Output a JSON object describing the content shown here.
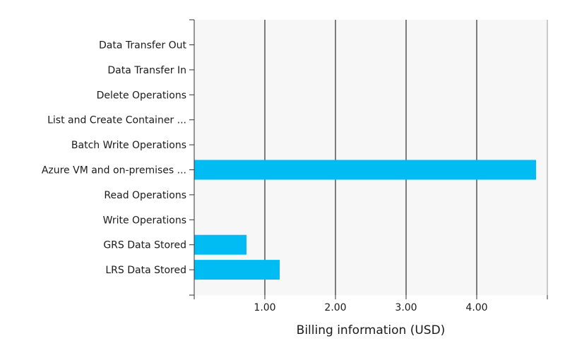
{
  "chart_data": {
    "type": "bar",
    "orientation": "horizontal",
    "categories": [
      "Data Transfer Out",
      "Data Transfer In",
      "Delete Operations",
      "List and Create Container ...",
      "Batch Write Operations",
      "Azure VM and on-premises  ...",
      "Read Operations",
      "Write Operations",
      "GRS Data Stored",
      "LRS Data Stored"
    ],
    "values": [
      0,
      0,
      0,
      0,
      0,
      4.84,
      0,
      0,
      0.74,
      1.21
    ],
    "xlabel": "Billing information (USD)",
    "ylabel": "",
    "xlim": [
      0,
      5
    ],
    "xticks": [
      1,
      2,
      3,
      4
    ],
    "xtick_labels": [
      "1.00",
      "2.00",
      "3.00",
      "4.00"
    ],
    "grid": "vertical",
    "legend": "none",
    "colors": {
      "bar": "#00bcf2",
      "plot_bg": "#f7f7f7",
      "grid": "#000000",
      "axis": "#333333"
    }
  }
}
